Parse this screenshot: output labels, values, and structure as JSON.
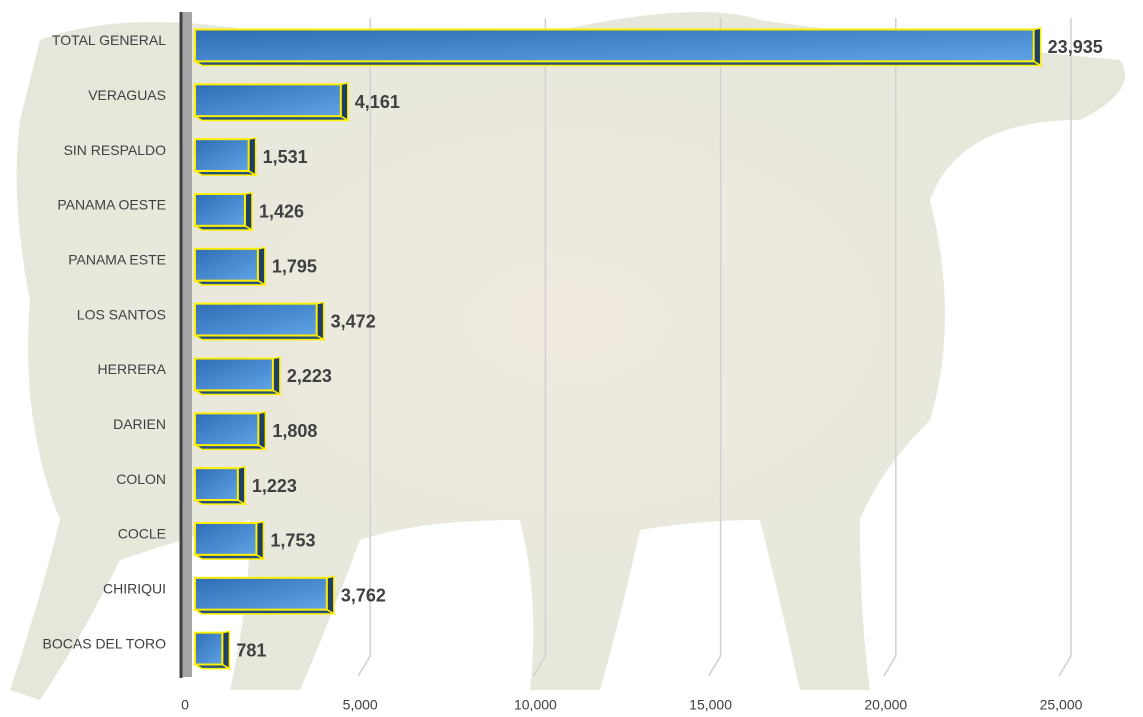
{
  "chart_data": {
    "type": "bar",
    "orientation": "horizontal",
    "categories": [
      "TOTAL GENERAL",
      "VERAGUAS",
      "SIN RESPALDO",
      "PANAMA OESTE",
      "PANAMA ESTE",
      "LOS SANTOS",
      "HERRERA",
      "DARIEN",
      "COLON",
      "COCLE",
      "CHIRIQUI",
      "BOCAS DEL TORO"
    ],
    "values": [
      23935,
      4161,
      1531,
      1426,
      1795,
      3472,
      2223,
      1808,
      1223,
      1753,
      3762,
      781
    ],
    "value_labels": [
      "23,935",
      "4,161",
      "1,531",
      "1,426",
      "1,795",
      "3,472",
      "2,223",
      "1,808",
      "1,223",
      "1,753",
      "3,762",
      "781"
    ],
    "color": "#2e6db5",
    "xlim": [
      0,
      25000
    ],
    "xticks": [
      0,
      {
        "value": 5000,
        "label": "5,000"
      },
      {
        "value": 10000,
        "label": "10,000"
      },
      {
        "value": 15000,
        "label": "15,000"
      },
      {
        "value": 20000,
        "label": "20,000"
      },
      {
        "value": 25000,
        "label": "25,000"
      }
    ],
    "grid": true
  }
}
